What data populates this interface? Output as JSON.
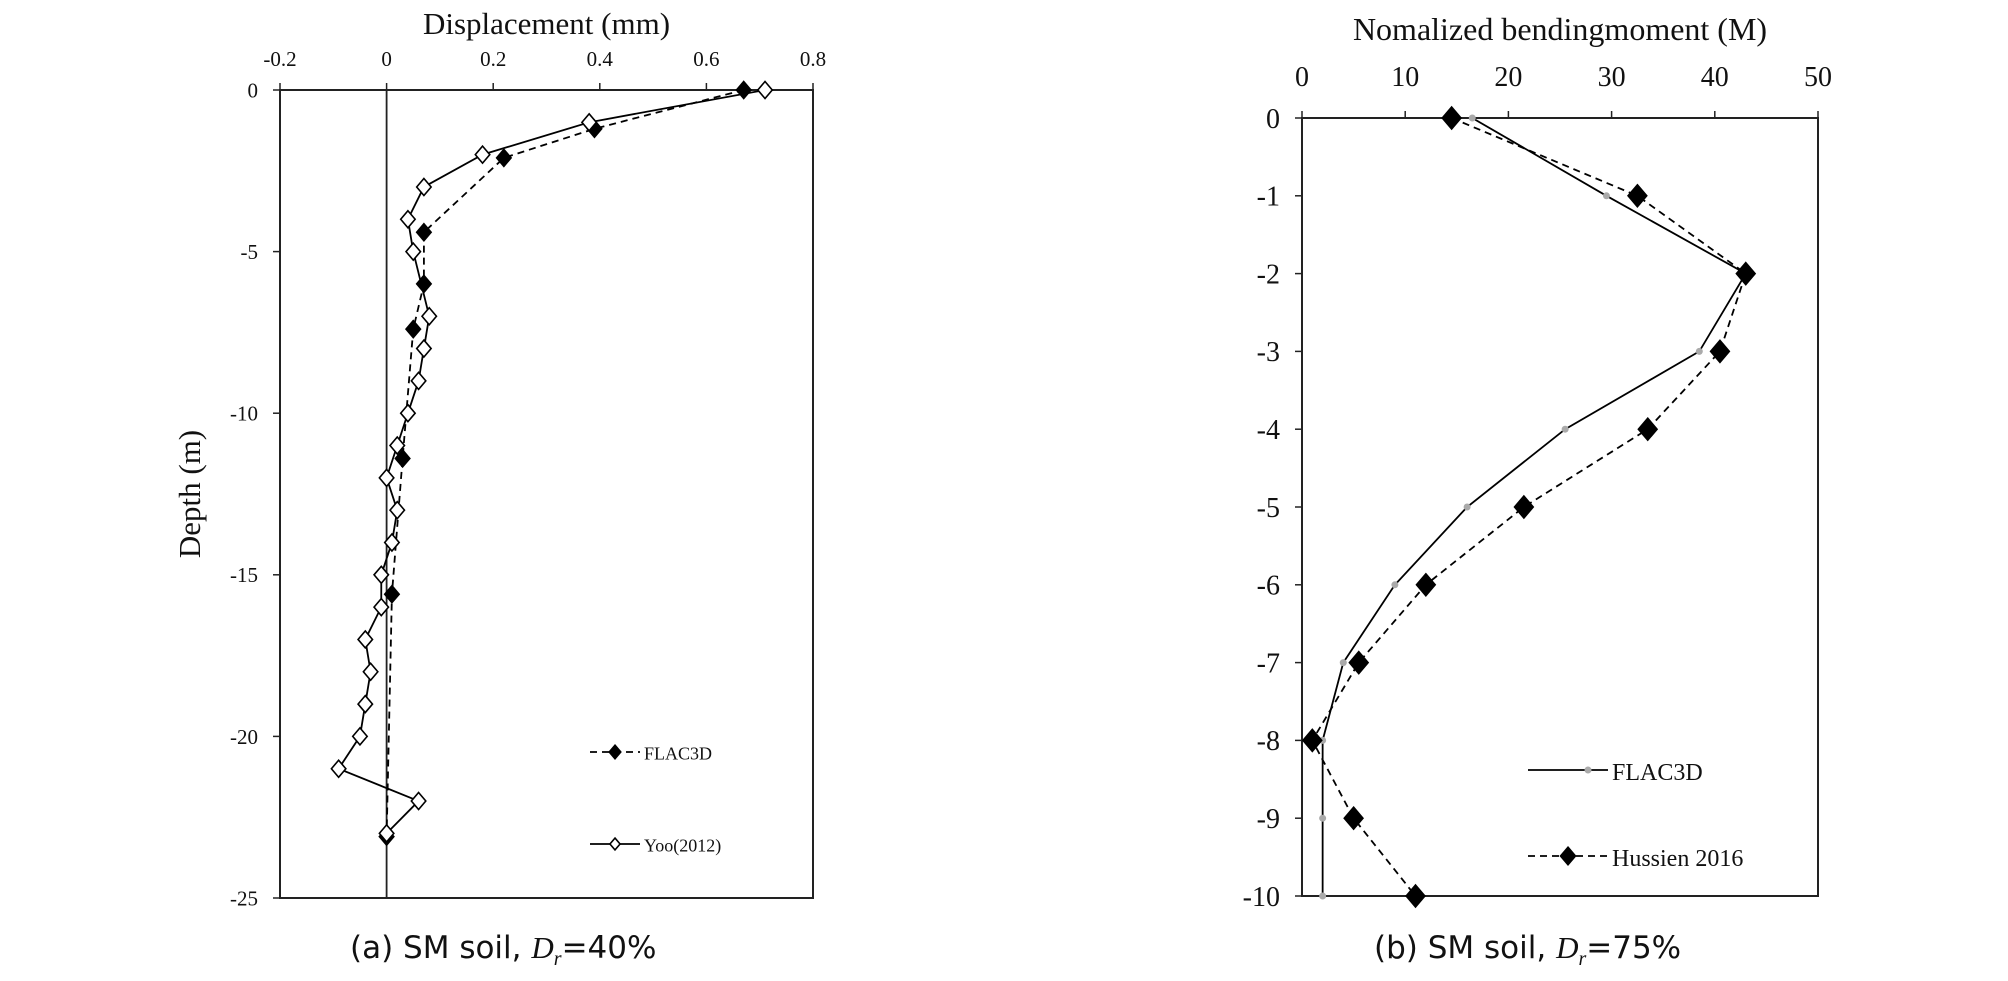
{
  "chart_data": [
    {
      "type": "line",
      "title": "",
      "xlabel": "Displacement (mm)",
      "ylabel": "Depth (m)",
      "xlim": [
        -0.2,
        0.8
      ],
      "ylim": [
        -25,
        0
      ],
      "x_axis_position": "top",
      "x_ticks": [
        -0.2,
        0,
        0.2,
        0.4,
        0.6,
        0.8
      ],
      "y_ticks": [
        0,
        -5,
        -10,
        -15,
        -20,
        -25
      ],
      "x_tick_labels": [
        "-0.2",
        "0",
        "0.2",
        "0.4",
        "0.6",
        "0.8"
      ],
      "y_tick_labels": [
        "0",
        "-5",
        "-10",
        "-15",
        "-20",
        "-25"
      ],
      "grid": false,
      "legend_position": "bottom-right",
      "series": [
        {
          "name": "FLAC3D",
          "style": "dashed",
          "marker": "filled-diamond",
          "color": "#000000",
          "x": [
            0.67,
            0.39,
            0.22,
            0.07,
            0.07,
            0.05,
            0.03,
            0.01,
            0.0
          ],
          "y": [
            0,
            -1.2,
            -2.1,
            -4.4,
            -6.0,
            -7.4,
            -11.4,
            -15.6,
            -23.1
          ]
        },
        {
          "name": "Yoo(2012)",
          "style": "solid",
          "marker": "open-diamond",
          "color": "#000000",
          "x": [
            0.71,
            0.38,
            0.18,
            0.07,
            0.04,
            0.05,
            0.08,
            0.07,
            0.06,
            0.04,
            0.02,
            0.0,
            0.02,
            0.01,
            -0.01,
            -0.01,
            -0.04,
            -0.03,
            -0.04,
            -0.05,
            -0.09,
            0.06,
            0.0
          ],
          "y": [
            0,
            -1.0,
            -2.0,
            -3.0,
            -4.0,
            -5.0,
            -7.0,
            -8.0,
            -9.0,
            -10.0,
            -11.0,
            -12.0,
            -13.0,
            -14.0,
            -15.0,
            -16.0,
            -17.0,
            -18.0,
            -19.0,
            -20.0,
            -21.0,
            -22.0,
            -23.0
          ]
        }
      ],
      "caption_prefix": "(a) SM soil, ",
      "caption_var": "D",
      "caption_sub": "r",
      "caption_suffix": "=40%"
    },
    {
      "type": "line",
      "title": "",
      "xlabel": "Nomalized bendingmoment (M)",
      "ylabel": "",
      "xlim": [
        0,
        50
      ],
      "ylim": [
        -10,
        0
      ],
      "x_axis_position": "top",
      "x_ticks": [
        0,
        10,
        20,
        30,
        40,
        50
      ],
      "y_ticks": [
        0,
        -1,
        -2,
        -3,
        -4,
        -5,
        -6,
        -7,
        -8,
        -9,
        -10
      ],
      "x_tick_labels": [
        "0",
        "10",
        "20",
        "30",
        "40",
        "50"
      ],
      "y_tick_labels": [
        "0",
        "-1",
        "-2",
        "-3",
        "-4",
        "-5",
        "-6",
        "-7",
        "-8",
        "-9",
        "-10"
      ],
      "grid": false,
      "legend_position": "bottom-right",
      "series": [
        {
          "name": "FLAC3D",
          "style": "solid",
          "marker": "small-gray-dot",
          "color": "#000000",
          "x": [
            16.5,
            29.5,
            43.0,
            38.5,
            25.5,
            16.0,
            9.0,
            4.0,
            2.0,
            2.0,
            2.0
          ],
          "y": [
            0,
            -1,
            -2,
            -3,
            -4,
            -5,
            -6,
            -7,
            -8,
            -9,
            -10
          ]
        },
        {
          "name": "Hussien 2016",
          "style": "dashed",
          "marker": "filled-diamond",
          "color": "#000000",
          "x": [
            14.5,
            32.5,
            43.0,
            40.5,
            33.5,
            21.5,
            12.0,
            5.5,
            1.0,
            5.0,
            11.0
          ],
          "y": [
            0,
            -1,
            -2,
            -3,
            -4,
            -5,
            -6,
            -7,
            -8,
            -9,
            -10
          ]
        }
      ],
      "caption_prefix": "(b) SM soil, ",
      "caption_var": "D",
      "caption_sub": "r",
      "caption_suffix": "=75%"
    }
  ]
}
